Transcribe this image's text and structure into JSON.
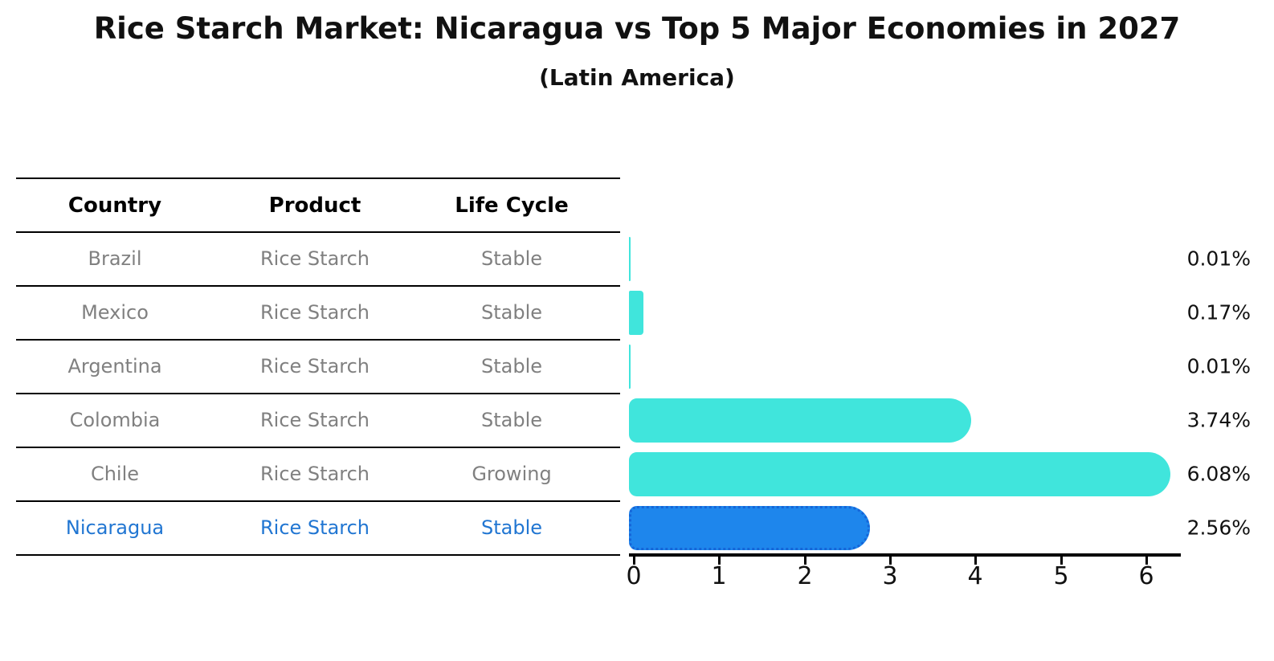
{
  "title": "Rice Starch Market: Nicaragua vs Top 5 Major Economies in 2027",
  "subtitle": "(Latin America)",
  "table": {
    "headers": [
      "Country",
      "Product",
      "Life Cycle"
    ],
    "rows": [
      {
        "country": "Brazil",
        "product": "Rice Starch",
        "life_cycle": "Stable",
        "highlight": false
      },
      {
        "country": "Mexico",
        "product": "Rice Starch",
        "life_cycle": "Stable",
        "highlight": false
      },
      {
        "country": "Argentina",
        "product": "Rice Starch",
        "life_cycle": "Stable",
        "highlight": false
      },
      {
        "country": "Colombia",
        "product": "Rice Starch",
        "life_cycle": "Stable",
        "highlight": false
      },
      {
        "country": "Chile",
        "product": "Rice Starch",
        "life_cycle": "Growing",
        "highlight": false
      },
      {
        "country": "Nicaragua",
        "product": "Rice Starch",
        "life_cycle": "Stable",
        "highlight": true
      }
    ]
  },
  "chart_data": {
    "type": "bar",
    "orientation": "horizontal",
    "title": "Rice Starch Market: Nicaragua vs Top 5 Major Economies in 2027",
    "subtitle": "(Latin America)",
    "categories": [
      "Brazil",
      "Mexico",
      "Argentina",
      "Colombia",
      "Chile",
      "Nicaragua"
    ],
    "values": [
      0.01,
      0.17,
      0.01,
      3.74,
      6.08,
      2.56
    ],
    "value_labels": [
      "0.01%",
      "0.17%",
      "0.01%",
      "3.74%",
      "6.08%",
      "2.56%"
    ],
    "xticks": [
      "0",
      "1",
      "2",
      "3",
      "4",
      "5",
      "6"
    ],
    "xlim": [
      0,
      6.45
    ],
    "grid": false,
    "legend": false,
    "highlight_index": 5
  },
  "colors": {
    "bar": "#40E5DC",
    "highlight_bar": "#1E86EC",
    "highlight_border": "#1565d8",
    "highlight_text": "#2176D2",
    "row_text": "#808080",
    "header_text": "#000000",
    "line": "#000000",
    "label_text": "#111111"
  }
}
